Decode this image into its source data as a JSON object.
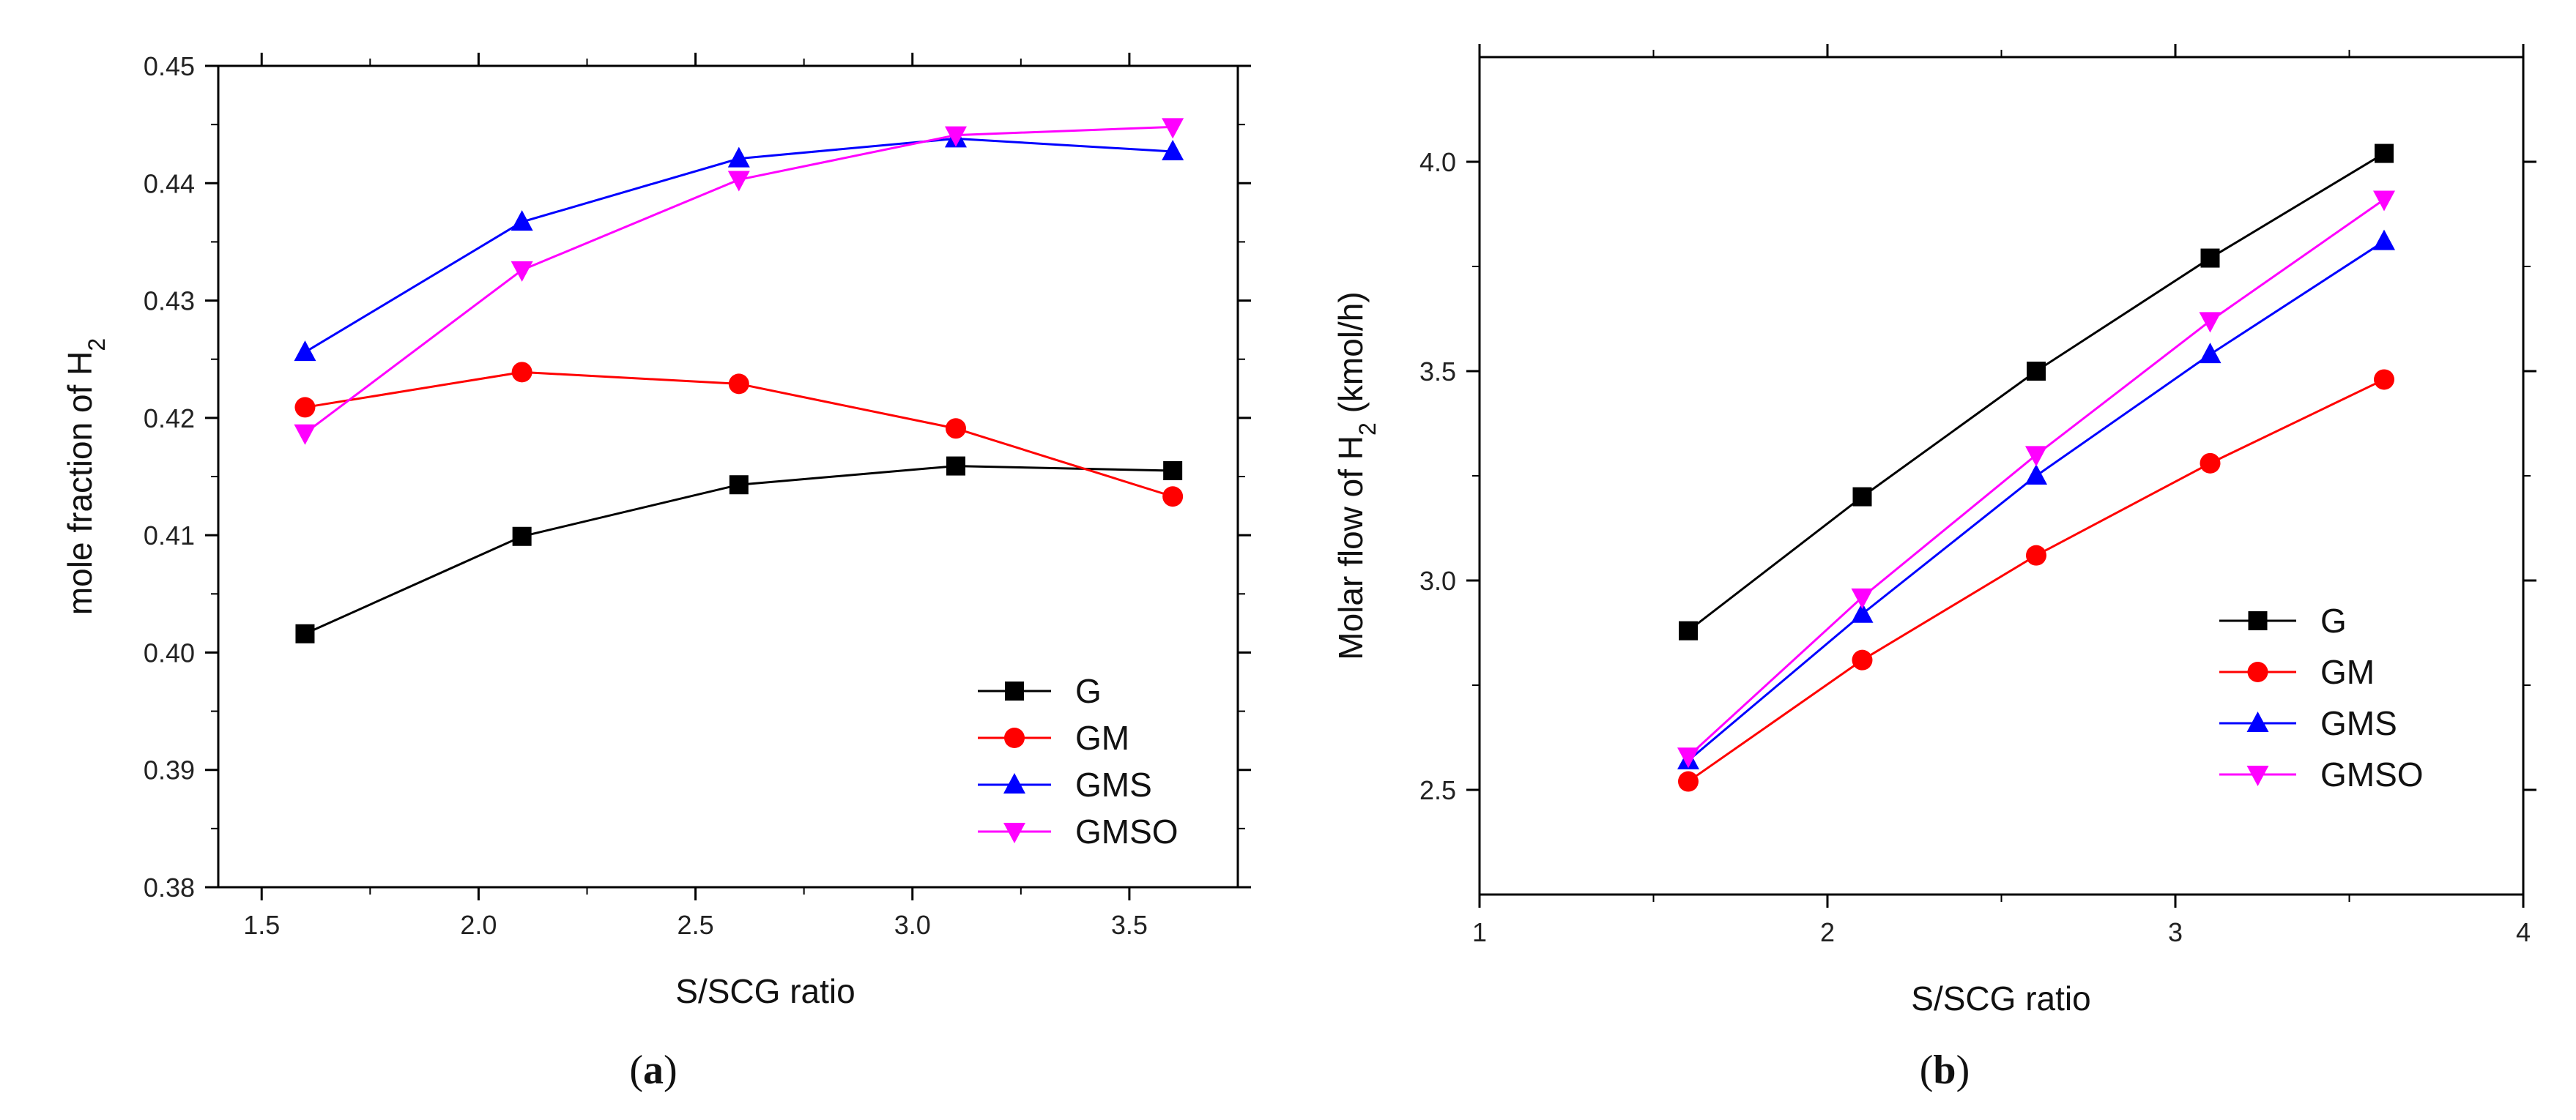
{
  "series_styles": [
    {
      "name": "G",
      "color": "#000000",
      "marker": "square"
    },
    {
      "name": "GM",
      "color": "#ff0000",
      "marker": "circle"
    },
    {
      "name": "GMS",
      "color": "#0000ff",
      "marker": "triangle-up"
    },
    {
      "name": "GMSO",
      "color": "#ff00ff",
      "marker": "triangle-down"
    }
  ],
  "chart_data": [
    {
      "type": "line",
      "panel_label": "a",
      "xlabel": "S/SCG ratio",
      "ylabel_main": "mole fraction of H",
      "ylabel_sub": "2",
      "ylabel_suffix": "",
      "xlim": [
        1.4,
        3.75
      ],
      "ylim": [
        0.38,
        0.45
      ],
      "xticks": [
        1.5,
        2.0,
        2.5,
        3.0,
        3.5
      ],
      "xtick_labels": [
        "1.5",
        "2.0",
        "2.5",
        "3.0",
        "3.5"
      ],
      "yticks": [
        0.38,
        0.39,
        0.4,
        0.41,
        0.42,
        0.43,
        0.44,
        0.45
      ],
      "ytick_labels": [
        "0.38",
        "0.39",
        "0.40",
        "0.41",
        "0.42",
        "0.43",
        "0.44",
        "0.45"
      ],
      "legend_position": "bottom-right",
      "x": [
        1.6,
        2.1,
        2.6,
        3.1,
        3.6
      ],
      "series": [
        {
          "name": "G",
          "values": [
            0.4016,
            0.4099,
            0.4143,
            0.4159,
            0.4155
          ]
        },
        {
          "name": "GM",
          "values": [
            0.4209,
            0.4239,
            0.4229,
            0.4191,
            0.4133
          ]
        },
        {
          "name": "GMS",
          "values": [
            0.4256,
            0.4367,
            0.4421,
            0.4438,
            0.4427
          ]
        },
        {
          "name": "GMSO",
          "values": [
            0.4187,
            0.4326,
            0.4403,
            0.4441,
            0.4448
          ]
        }
      ]
    },
    {
      "type": "line",
      "panel_label": "b",
      "xlabel": "S/SCG ratio",
      "ylabel_main": "Molar flow of H",
      "ylabel_sub": "2",
      "ylabel_suffix": "  (kmol/h)",
      "xlim": [
        1,
        4
      ],
      "ylim": [
        2.25,
        4.25
      ],
      "xticks": [
        1,
        2,
        3,
        4
      ],
      "xtick_labels": [
        "1",
        "2",
        "3",
        "4"
      ],
      "yticks": [
        2.5,
        3.0,
        3.5,
        4.0
      ],
      "ytick_labels": [
        "2.5",
        "3.0",
        "3.5",
        "4.0"
      ],
      "legend_position": "center-right",
      "x": [
        1.6,
        2.1,
        2.6,
        3.1,
        3.6
      ],
      "series": [
        {
          "name": "G",
          "values": [
            2.88,
            3.2,
            3.5,
            3.77,
            4.02
          ]
        },
        {
          "name": "GM",
          "values": [
            2.52,
            2.81,
            3.06,
            3.28,
            3.48
          ]
        },
        {
          "name": "GMS",
          "values": [
            2.57,
            2.92,
            3.25,
            3.54,
            3.81
          ]
        },
        {
          "name": "GMSO",
          "values": [
            2.58,
            2.96,
            3.3,
            3.62,
            3.91
          ]
        }
      ]
    }
  ]
}
